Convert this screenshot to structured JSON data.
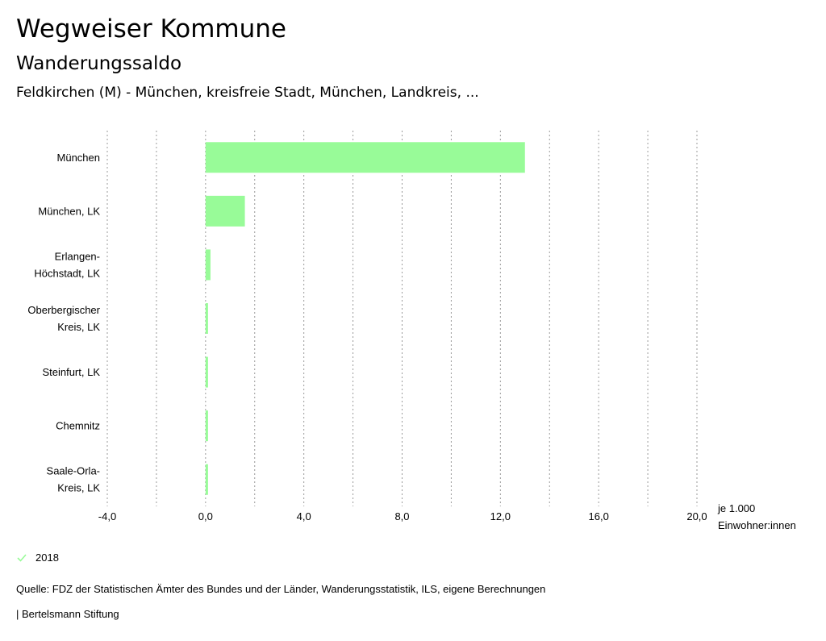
{
  "header": {
    "title": "Wegweiser Kommune",
    "subtitle": "Wanderungssaldo",
    "region": "Feldkirchen (M) - München, kreisfreie Stadt, München, Landkreis, ..."
  },
  "chart_data": {
    "type": "bar",
    "orientation": "horizontal",
    "categories": [
      [
        "München"
      ],
      [
        "München, LK"
      ],
      [
        "Erlangen-",
        "Höchstadt, LK"
      ],
      [
        "Oberbergischer",
        "Kreis, LK"
      ],
      [
        "Steinfurt, LK"
      ],
      [
        "Chemnitz"
      ],
      [
        "Saale-Orla-",
        "Kreis, LK"
      ]
    ],
    "series": [
      {
        "name": "2018",
        "color": "#98fb98",
        "values": [
          13.0,
          1.6,
          0.2,
          0.1,
          0.1,
          0.1,
          0.1
        ]
      }
    ],
    "xlim": [
      -4,
      20
    ],
    "xticks": [
      -4,
      0,
      4,
      8,
      12,
      16,
      20
    ],
    "xtick_labels": [
      "-4,0",
      "0,0",
      "4,0",
      "8,0",
      "12,0",
      "16,0",
      "20,0"
    ],
    "xlabel": [
      "je 1.000",
      "Einwohner:innen"
    ],
    "grid": true,
    "legend_position": "bottom-left"
  },
  "legend": {
    "label": "2018",
    "color": "#98fb98"
  },
  "footer": {
    "source": "Quelle: FDZ der Statistischen Ämter des Bundes und der Länder, Wanderungsstatistik, ILS, eigene Berechnungen",
    "brand": "| Bertelsmann Stiftung"
  }
}
